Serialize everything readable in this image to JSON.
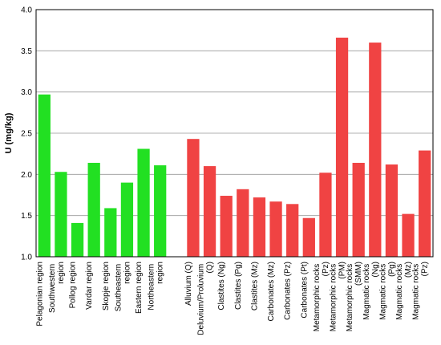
{
  "chart_data": {
    "type": "bar",
    "ylabel": "U (mg/kg)",
    "categories": [
      "Pelagonian region",
      "Southwestern region",
      "Pollog region",
      "Vardar region",
      "Skopje region",
      "Southeastern region",
      "Eastern region",
      "Northeastern region",
      null,
      "Alluvium (Q)",
      "Deluvium/Proluvium (Q)",
      "Clastites (Ng)",
      "Clastites (Pg)",
      "Clastites (Mz)",
      "Carbonates (Mz)",
      "Carbonates (Pz)",
      "Carbonates (Pt)",
      "Metamorphic rocks (Pz)",
      "Metamorphic rocks (PM)",
      "Metamorphic rocks (SMM)",
      "Magmatic rocks (Ng)",
      "Magmatic rocks (Pg)",
      "Magmatic rocks (Mz)",
      "Magmatic rocks (Pz)"
    ],
    "values": [
      2.97,
      2.03,
      1.41,
      2.14,
      1.59,
      1.9,
      2.31,
      2.11,
      null,
      2.43,
      2.1,
      1.74,
      1.82,
      1.72,
      1.67,
      1.64,
      1.47,
      2.02,
      3.66,
      2.14,
      3.6,
      2.12,
      1.52,
      2.29
    ],
    "colors": [
      "#22e022",
      "#22e022",
      "#22e022",
      "#22e022",
      "#22e022",
      "#22e022",
      "#22e022",
      "#22e022",
      null,
      "#f04343",
      "#f04343",
      "#f04343",
      "#f04343",
      "#f04343",
      "#f04343",
      "#f04343",
      "#f04343",
      "#f04343",
      "#f04343",
      "#f04343",
      "#f04343",
      "#f04343",
      "#f04343",
      "#f04343"
    ],
    "ylim": [
      1,
      4
    ],
    "yticks": [
      {
        "value": 1,
        "label": "1.0"
      },
      1.5,
      {
        "value": 2,
        "label": "2.0"
      },
      2.5,
      {
        "value": 3,
        "label": "3.0"
      },
      3.5,
      {
        "value": 4,
        "label": "4.0"
      }
    ],
    "grid": true
  }
}
